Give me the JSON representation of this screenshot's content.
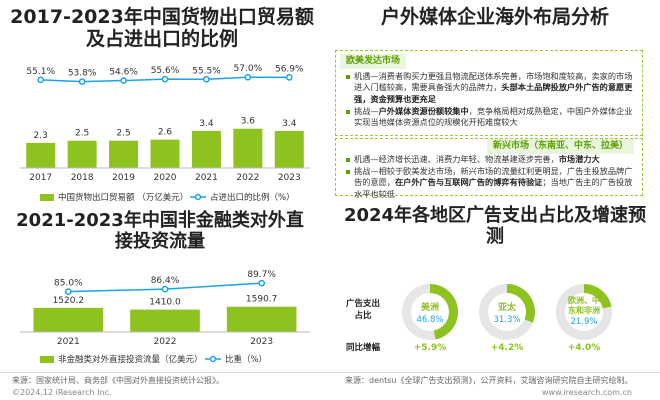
{
  "titles": {
    "chart1": "2017-2023年中国货物出口贸易额及占进出口的比例",
    "panel": "户外媒体企业海外布局分析",
    "chart2": "2021-2023年中国非金融类对外直接投资流量",
    "chart3": "2024年各地区广告支出占比及增速预测"
  },
  "panel": {
    "europe": {
      "head": "欧美发达市场",
      "items": [
        {
          "parts": [
            {
              "t": "机遇—消费者购买力更强且物流配送体系完善，市场饱和度较高，卖家的市场进入门槛较高，需要具备强大的品牌力，",
              "b": false
            },
            {
              "t": "头部本土品牌投放户外广告的意愿更强，资金预算也更充足",
              "b": true
            }
          ]
        },
        {
          "parts": [
            {
              "t": "挑战—",
              "b": false
            },
            {
              "t": "户外媒体资源份额较集中",
              "b": true
            },
            {
              "t": "，竞争格局相对成熟稳定，中国户外媒体企业实现当地媒体资源点位的规模化开拓难度较大",
              "b": false
            }
          ]
        }
      ]
    },
    "emerging": {
      "head": "新兴市场（东南亚、中东、拉美）",
      "items": [
        {
          "parts": [
            {
              "t": "机遇—经济增长迅速、消费力年轻、物流基建逐步完善，",
              "b": false
            },
            {
              "t": "市场潜力大",
              "b": true
            }
          ]
        },
        {
          "parts": [
            {
              "t": "挑战—相较于欧美发达市场，新兴市场的流量红利更明显，广告主投放品牌广告的意愿，",
              "b": false
            },
            {
              "t": "在户外广告与互联网广告的博弈有待验证",
              "b": true
            },
            {
              "t": "；当地广告主的广告投放水平也较低",
              "b": false
            }
          ]
        }
      ]
    }
  },
  "chart_data": [
    {
      "type": "bar",
      "title": "2017-2023年中国货物出口贸易额及占进出口的比例",
      "categories": [
        "2017",
        "2018",
        "2019",
        "2020",
        "2021",
        "2022",
        "2023"
      ],
      "series": [
        {
          "name": "中国货物出口贸易额 （万亿美元）",
          "type": "bar",
          "values": [
            2.3,
            2.5,
            2.5,
            2.6,
            3.4,
            3.6,
            3.4
          ],
          "color": "#8dc21f"
        },
        {
          "name": "占进出口的比例（%）",
          "type": "line",
          "values": [
            55.1,
            53.8,
            54.6,
            55.6,
            55.5,
            57.0,
            56.9
          ],
          "labels": [
            "55.1%",
            "53.8%",
            "54.6%",
            "55.6%",
            "55.5%",
            "57.0%",
            "56.9%"
          ],
          "color": "#1aa3e8"
        }
      ],
      "legend_position": "bottom"
    },
    {
      "type": "bar",
      "title": "2021-2023年中国非金融类对外直接投资流量",
      "categories": [
        "2021",
        "2022",
        "2023"
      ],
      "series": [
        {
          "name": "非金融类对外直接投资流量（亿美元）",
          "type": "bar",
          "values": [
            1520.2,
            1410.0,
            1590.7
          ],
          "labels": [
            "1520.2",
            "1410.0",
            "1590.7"
          ],
          "color": "#8dc21f"
        },
        {
          "name": "比重（%）",
          "type": "line",
          "values": [
            85.0,
            86.4,
            89.7
          ],
          "labels": [
            "85.0%",
            "86.4%",
            "89.7%"
          ],
          "color": "#1aa3e8"
        }
      ],
      "legend_position": "bottom"
    },
    {
      "type": "pie",
      "title": "2024年各地区广告支出占比及增速预测",
      "row_labels": [
        "广告支出占比",
        "同比增幅"
      ],
      "regions": [
        {
          "name": "美洲",
          "share": 46.8,
          "share_label": "46.8%",
          "growth_label": "+5.9%"
        },
        {
          "name": "亚太",
          "share": 31.3,
          "share_label": "31.3%",
          "growth_label": "+4.2%"
        },
        {
          "name": "欧洲、中东和非洲",
          "share": 21.9,
          "share_label": "21.9%",
          "growth_label": "+4.0%"
        }
      ]
    }
  ],
  "colors": {
    "green": "#8dc21f",
    "blue": "#1aa3e8",
    "light_green": "#e9f6dd"
  },
  "footer": {
    "source1": "来源：国家统计局、商务部《中国对外直接投资统计公报》。",
    "source2": "来源：dentsu《全球广告支出预测》，公开资料，艾瑞咨询研究院自主研究绘制。",
    "copyright": "©2024.12 iResearch Inc.",
    "site": "www.iresearch.com.cn"
  }
}
